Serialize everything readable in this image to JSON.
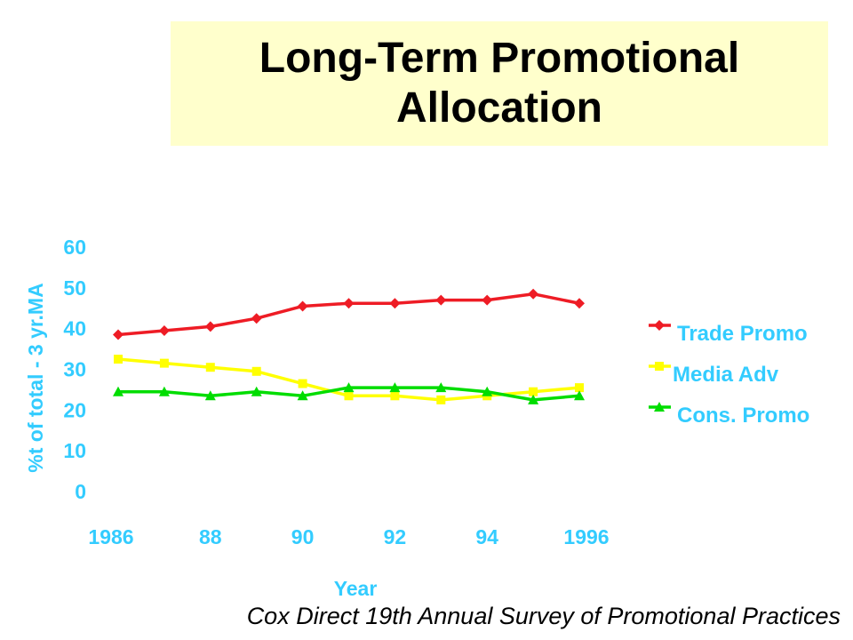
{
  "slide": {
    "title_line1": "Long-Term Promotional",
    "title_line2": "Allocation",
    "source": "Cox Direct 19th Annual Survey of Promotional Practices"
  },
  "chart_data": {
    "type": "line",
    "xlabel": "Year",
    "ylabel": "%t of total - 3 yr.MA",
    "x": [
      1986,
      1987,
      1988,
      1989,
      1990,
      1991,
      1992,
      1993,
      1994,
      1995,
      1996
    ],
    "x_tick_labels": [
      {
        "x": 1986,
        "label": "1986"
      },
      {
        "x": 1988,
        "label": "88"
      },
      {
        "x": 1990,
        "label": "90"
      },
      {
        "x": 1992,
        "label": "92"
      },
      {
        "x": 1994,
        "label": "94"
      },
      {
        "x": 1996,
        "label": "1996"
      }
    ],
    "y_ticks": [
      "0",
      "10",
      "20",
      "30",
      "40",
      "50",
      "60"
    ],
    "ylim": [
      0,
      60
    ],
    "grid": false,
    "legend_position": "right",
    "series": [
      {
        "name": "Trade Promo",
        "color": "#ee1c25",
        "marker": "diamond",
        "values": [
          38.5,
          39.5,
          40.5,
          42.5,
          45.5,
          46.2,
          46.2,
          47,
          47,
          48.5,
          46.2
        ]
      },
      {
        "name": "Media Adv",
        "color": "#ffff00",
        "marker": "square",
        "values": [
          32.5,
          31.5,
          30.5,
          29.5,
          26.5,
          23.5,
          23.5,
          22.5,
          23.5,
          24.5,
          25.5
        ]
      },
      {
        "name": "Cons. Promo",
        "color": "#00dd00",
        "marker": "triangle",
        "values": [
          24.5,
          24.5,
          23.5,
          24.5,
          23.5,
          25.5,
          25.5,
          25.5,
          24.5,
          22.5,
          23.5
        ]
      }
    ],
    "axis_text_color": "#33ccff"
  }
}
